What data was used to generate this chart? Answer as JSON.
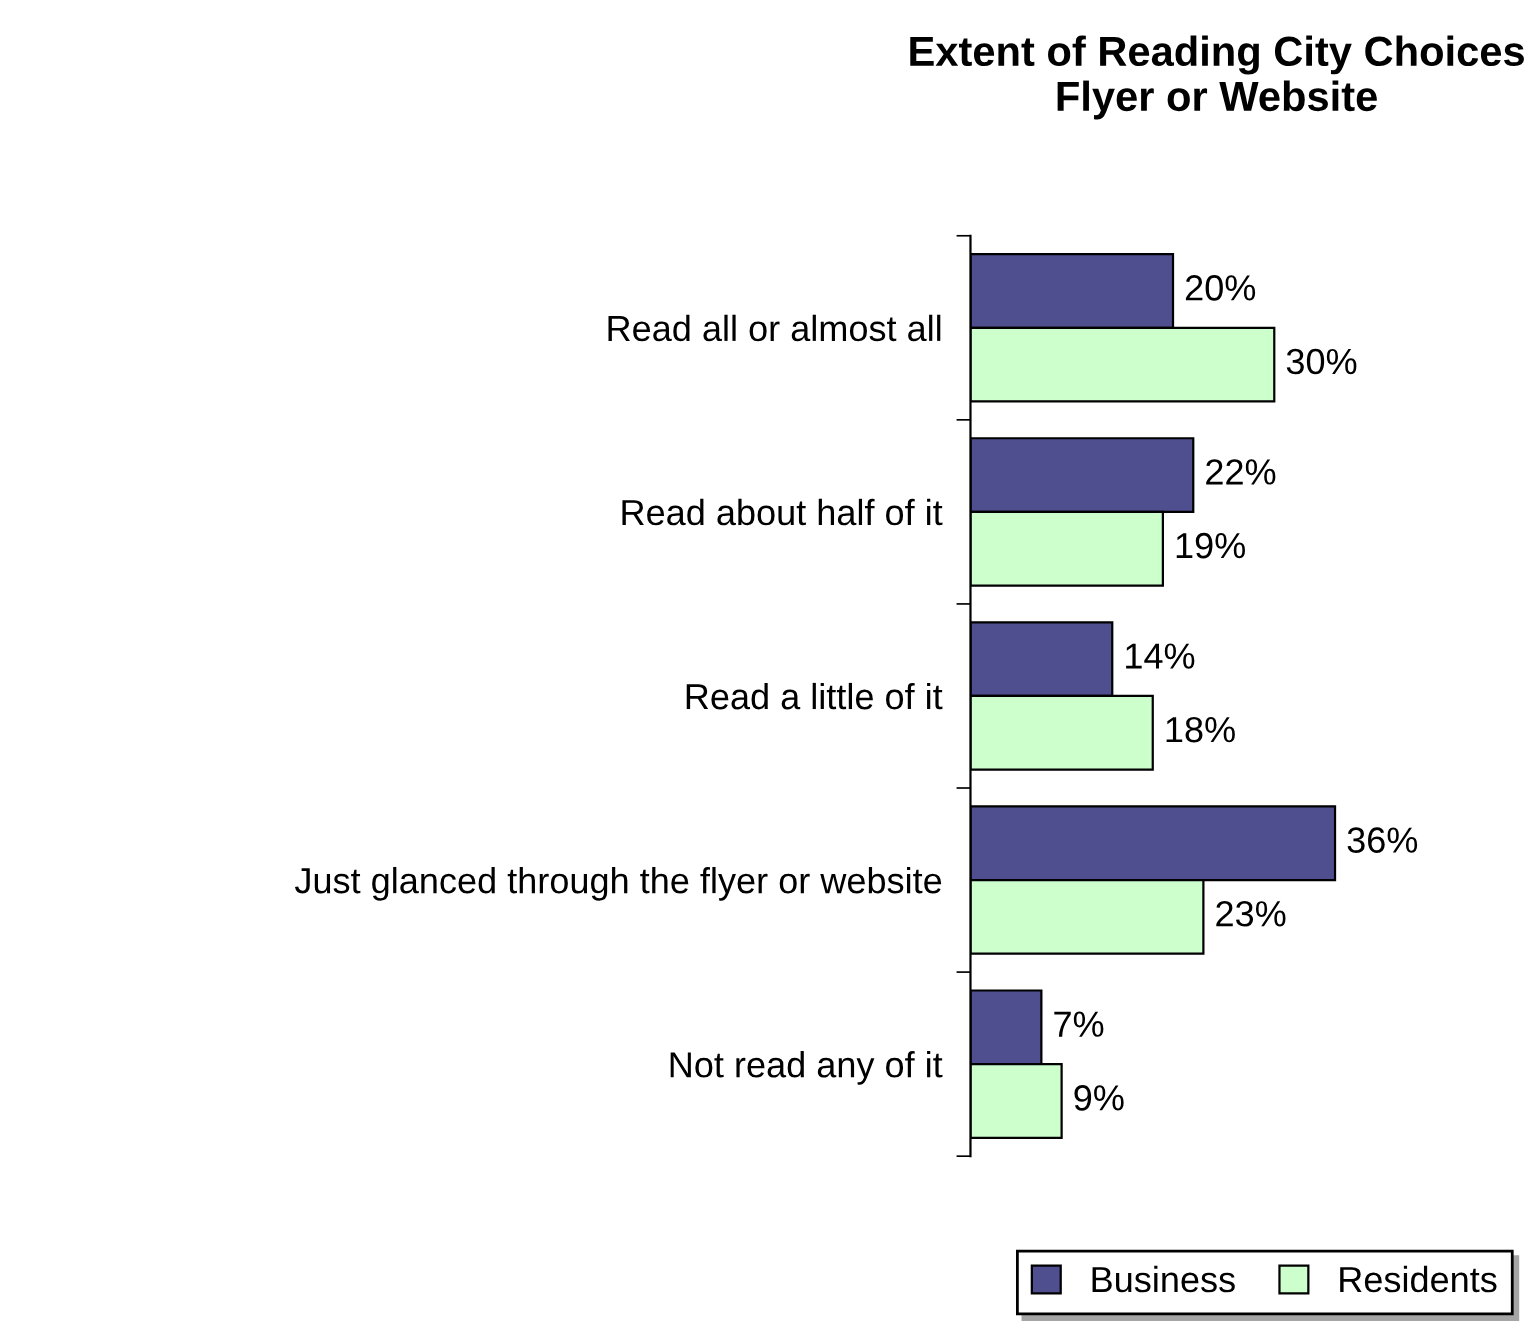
{
  "chart_data": {
    "type": "bar",
    "orientation": "horizontal",
    "title": "Extent of Reading City Choices\nFlyer or Website",
    "categories": [
      "Read all or almost all",
      "Read about half of it",
      "Read a little of it",
      "Just glanced through the flyer or website",
      "Not read any of it"
    ],
    "series": [
      {
        "name": "Business",
        "color": "#4f4f8f",
        "values": [
          20,
          22,
          14,
          36,
          7
        ],
        "value_labels": [
          "20%",
          "22%",
          "14%",
          "36%",
          "7%"
        ]
      },
      {
        "name": "Residents",
        "color": "#ccffcc",
        "values": [
          30,
          19,
          18,
          23,
          9
        ],
        "value_labels": [
          "30%",
          "19%",
          "18%",
          "23%",
          "9%"
        ]
      }
    ],
    "legend": "bottom right",
    "grid": false
  }
}
